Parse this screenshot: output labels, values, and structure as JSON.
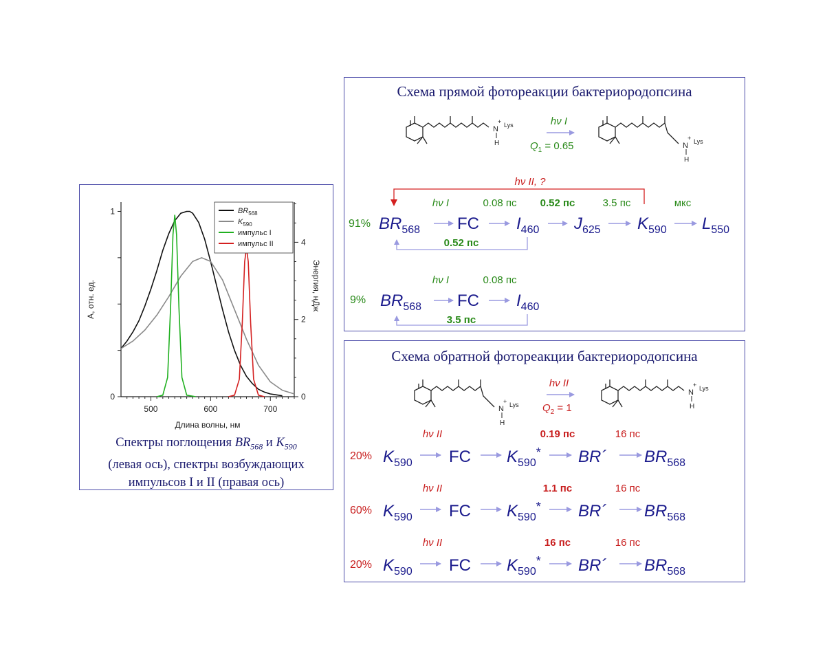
{
  "chart_data": {
    "type": "line",
    "xlabel": "Длина волны, нм",
    "ylabel": "А, отн. ед.",
    "y2label": "Энергия, нДж",
    "xlim": [
      450,
      740
    ],
    "ylim": [
      0,
      1.05
    ],
    "y2lim": [
      0,
      5.04
    ],
    "x_ticks": [
      "500",
      "600",
      "700"
    ],
    "y_ticks": [
      "0",
      "1"
    ],
    "y2_ticks": [
      "0",
      "2",
      "4"
    ],
    "legend_position": "top-right",
    "series": [
      {
        "name": "BR568",
        "name_main": "BR",
        "name_sub": "568",
        "color": "#111111",
        "axis": "left",
        "x": [
          450,
          460,
          470,
          480,
          490,
          500,
          510,
          520,
          530,
          540,
          550,
          560,
          565,
          570,
          580,
          590,
          600,
          610,
          620,
          630,
          640,
          650,
          660,
          670,
          680,
          690,
          700,
          710,
          720
        ],
        "y": [
          0.26,
          0.3,
          0.35,
          0.41,
          0.49,
          0.58,
          0.68,
          0.79,
          0.88,
          0.95,
          0.99,
          1.0,
          1.0,
          0.99,
          0.94,
          0.85,
          0.73,
          0.6,
          0.47,
          0.35,
          0.25,
          0.17,
          0.11,
          0.07,
          0.04,
          0.025,
          0.015,
          0.01,
          0.005
        ]
      },
      {
        "name": "K590",
        "name_main": "K",
        "name_sub": "590",
        "color": "#8a8a8a",
        "axis": "left",
        "x": [
          450,
          470,
          490,
          510,
          530,
          550,
          570,
          585,
          600,
          620,
          640,
          660,
          680,
          700,
          720,
          740
        ],
        "y": [
          0.26,
          0.3,
          0.36,
          0.44,
          0.54,
          0.65,
          0.73,
          0.75,
          0.73,
          0.63,
          0.47,
          0.31,
          0.17,
          0.08,
          0.035,
          0.015
        ]
      },
      {
        "name": "импульс I",
        "color": "#20b020",
        "axis": "right",
        "x": [
          510,
          520,
          528,
          533,
          537,
          540,
          543,
          547,
          552,
          560,
          575
        ],
        "y": [
          0,
          0.04,
          0.5,
          2.3,
          4.2,
          4.7,
          4.2,
          2.3,
          0.5,
          0.04,
          0
        ]
      },
      {
        "name": "импульс II",
        "color": "#d42020",
        "axis": "right",
        "x": [
          630,
          640,
          648,
          653,
          657,
          660,
          663,
          667,
          672,
          680,
          690
        ],
        "y": [
          0,
          0.04,
          0.45,
          1.9,
          3.5,
          3.85,
          3.5,
          1.9,
          0.45,
          0.04,
          0
        ]
      }
    ]
  },
  "caption": {
    "line1_a": "Спектры поглощения ",
    "br_main": "BR",
    "br_sub": "568",
    "and": " и ",
    "k_main": "K",
    "k_sub": "590",
    "line2": "(левая ось), спектры возбуждающих",
    "line3": "импульсов I и II (правая ось)"
  },
  "forward": {
    "title": "Схема прямой фотореакции бактериородопсина",
    "hv_label": "hν I",
    "q_main": "Q",
    "q_sub": "1",
    "q_value": " = 0.65",
    "back_label": "hν II, ?",
    "row1": {
      "percent": "91%",
      "hv": "hν I",
      "t1": "0.08 пс",
      "t2": "0.52 пс",
      "t3": "3.5 пс",
      "t4": "мкс",
      "return_time": "0.52 пс"
    },
    "row2": {
      "percent": "9%",
      "hv": "hν I",
      "t1": "0.08 пс",
      "return_time": "3.5 пс"
    },
    "species": {
      "br": "BR",
      "br_sub": "568",
      "fc": "FC",
      "i": "I",
      "i_sub": "460",
      "j": "J",
      "j_sub": "625",
      "k": "K",
      "k_sub": "590",
      "l": "L",
      "l_sub": "550"
    }
  },
  "reverse": {
    "title": "Схема обратной фотореакции бактериородопсина",
    "hv_label": "hν II",
    "q_main": "Q",
    "q_sub": "2",
    "q_value": " = 1",
    "rows": [
      {
        "percent": "20%",
        "hv": "hν II",
        "t_fast": "0.19 пс",
        "t_slow": "16 пс"
      },
      {
        "percent": "60%",
        "hv": "hν II",
        "t_fast": "1.1 пс",
        "t_slow": "16 пс"
      },
      {
        "percent": "20%",
        "hv": "hν II",
        "t_fast": "16 пс",
        "t_slow": "16 пс"
      }
    ],
    "species": {
      "k": "K",
      "k_sub": "590",
      "fc": "FC",
      "k_star": "*",
      "br_prime": "BR´",
      "br": "BR",
      "br_sub": "568"
    }
  },
  "molecule": {
    "nh_label": "N",
    "h_label": "H",
    "plus": "+",
    "lys": "Lys"
  },
  "colors": {
    "navy": "#1a1a8c",
    "green": "#2a8a1a",
    "red": "#c81e1e",
    "arrow": "#9a9ae0",
    "border": "#4a4aa8"
  }
}
